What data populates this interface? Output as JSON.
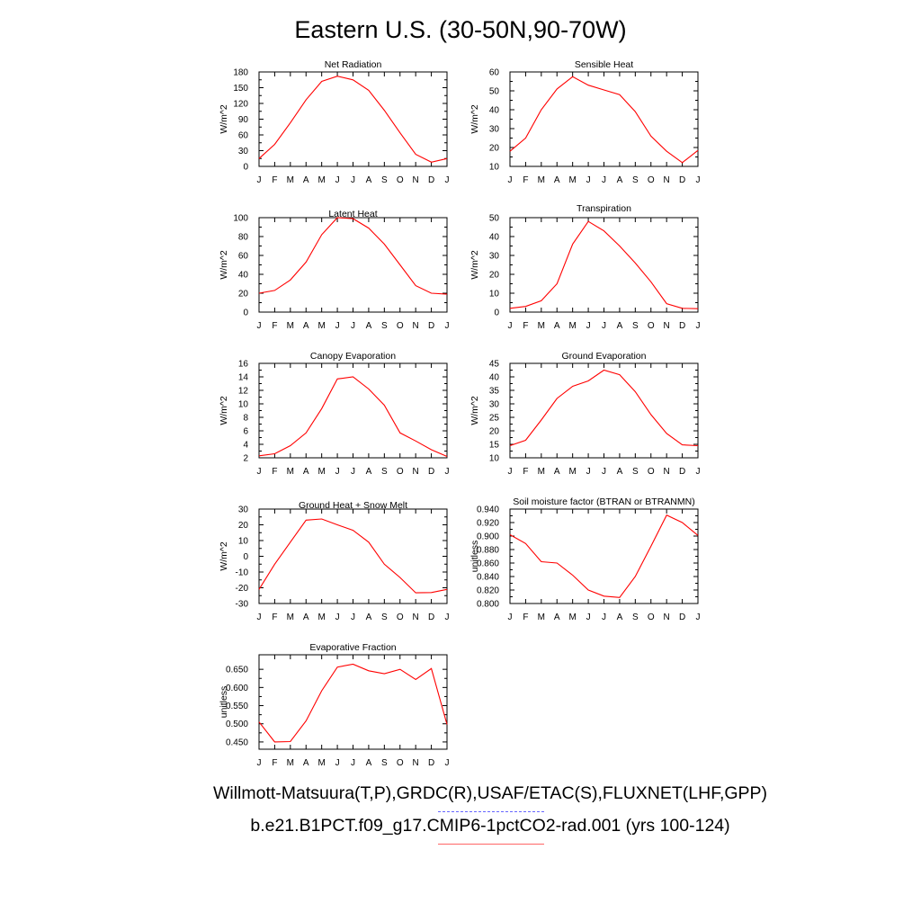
{
  "title": "Eastern U.S. (30-50N,90-70W)",
  "footer": {
    "observations": "Willmott-Matsuura(T,P),GRDC(R),USAF/ETAC(S),FLUXNET(LHF,GPP)",
    "model": "b.e21.B1PCT.f09_g17.CMIP6-1pctCO2-rad.001 (yrs 100-124)"
  },
  "colors": {
    "model_line": "#ff0000",
    "obs_legend": "#6666ff",
    "model_legend": "#ff6666"
  },
  "chart_data": [
    {
      "type": "line",
      "title": "Net Radiation",
      "ylabel": "W/m^2",
      "x": [
        "J",
        "F",
        "M",
        "A",
        "M",
        "J",
        "J",
        "A",
        "S",
        "O",
        "N",
        "D",
        "J"
      ],
      "ylim": [
        0,
        180
      ],
      "yticks": [
        "0",
        "30",
        "60",
        "90",
        "120",
        "150",
        "180"
      ],
      "series": [
        {
          "values": [
            15,
            42,
            83,
            127,
            162,
            172,
            165,
            145,
            107,
            64,
            23,
            8,
            15
          ]
        }
      ]
    },
    {
      "type": "line",
      "title": "Sensible Heat",
      "ylabel": "W/m^2",
      "x": [
        "J",
        "F",
        "M",
        "A",
        "M",
        "J",
        "J",
        "A",
        "S",
        "O",
        "N",
        "D",
        "J"
      ],
      "ylim": [
        10,
        60
      ],
      "yticks": [
        "10",
        "20",
        "30",
        "40",
        "50",
        "60"
      ],
      "series": [
        {
          "values": [
            18,
            25,
            40,
            51,
            57.5,
            53,
            50.5,
            48,
            39,
            26,
            18,
            12,
            18.5
          ]
        }
      ]
    },
    {
      "type": "line",
      "title": "Latent Heat",
      "ylabel": "W/m^2",
      "x": [
        "J",
        "F",
        "M",
        "A",
        "M",
        "J",
        "J",
        "A",
        "S",
        "O",
        "N",
        "D",
        "J"
      ],
      "ylim": [
        0,
        100
      ],
      "yticks": [
        "0",
        "20",
        "40",
        "60",
        "80",
        "100"
      ],
      "series": [
        {
          "values": [
            20,
            23,
            34,
            53,
            82,
            100,
            99,
            89,
            72,
            50,
            28,
            20,
            19
          ]
        }
      ]
    },
    {
      "type": "line",
      "title": "Transpiration",
      "ylabel": "W/m^2",
      "x": [
        "J",
        "F",
        "M",
        "A",
        "M",
        "J",
        "J",
        "A",
        "S",
        "O",
        "N",
        "D",
        "J"
      ],
      "ylim": [
        0,
        50
      ],
      "yticks": [
        "0",
        "10",
        "20",
        "30",
        "40",
        "50"
      ],
      "series": [
        {
          "values": [
            2,
            3,
            6,
            15,
            36,
            48,
            43,
            35,
            26,
            16,
            4.5,
            2,
            1.8
          ]
        }
      ]
    },
    {
      "type": "line",
      "title": "Canopy Evaporation",
      "ylabel": "W/m^2",
      "x": [
        "J",
        "F",
        "M",
        "A",
        "M",
        "J",
        "J",
        "A",
        "S",
        "O",
        "N",
        "D",
        "J"
      ],
      "ylim": [
        2,
        16
      ],
      "yticks": [
        "2",
        "4",
        "6",
        "8",
        "10",
        "12",
        "14",
        "16"
      ],
      "series": [
        {
          "values": [
            2.3,
            2.6,
            3.8,
            5.7,
            9.3,
            13.7,
            14.0,
            12.2,
            9.8,
            5.7,
            4.5,
            3.2,
            2.2
          ]
        }
      ]
    },
    {
      "type": "line",
      "title": "Ground Evaporation",
      "ylabel": "W/m^2",
      "x": [
        "J",
        "F",
        "M",
        "A",
        "M",
        "J",
        "J",
        "A",
        "S",
        "O",
        "N",
        "D",
        "J"
      ],
      "ylim": [
        10,
        45
      ],
      "yticks": [
        "10",
        "15",
        "20",
        "25",
        "30",
        "35",
        "40",
        "45"
      ],
      "series": [
        {
          "values": [
            14.5,
            16.5,
            24,
            32,
            36.5,
            38.5,
            42.5,
            40.8,
            34.5,
            26,
            19,
            14.8,
            14.5
          ]
        }
      ]
    },
    {
      "type": "line",
      "title": "Ground Heat + Snow Melt",
      "ylabel": "W/m^2",
      "x": [
        "J",
        "F",
        "M",
        "A",
        "M",
        "J",
        "J",
        "A",
        "S",
        "O",
        "N",
        "D",
        "J"
      ],
      "ylim": [
        -30,
        30
      ],
      "yticks": [
        "-30",
        "-20",
        "-10",
        "0",
        "10",
        "20",
        "30"
      ],
      "series": [
        {
          "values": [
            -21,
            -5,
            9,
            23,
            23.7,
            20,
            16.5,
            9,
            -5,
            -13.5,
            -23.2,
            -23,
            -21
          ]
        }
      ]
    },
    {
      "type": "line",
      "title": "Soil moisture factor (BTRAN or BTRANMN)",
      "ylabel": "unitless",
      "x": [
        "J",
        "F",
        "M",
        "A",
        "M",
        "J",
        "J",
        "A",
        "S",
        "O",
        "N",
        "D",
        "J"
      ],
      "ylim": [
        0.8,
        0.94
      ],
      "yticks": [
        "0.800",
        "0.820",
        "0.840",
        "0.860",
        "0.880",
        "0.900",
        "0.920",
        "0.940"
      ],
      "series": [
        {
          "values": [
            0.902,
            0.889,
            0.862,
            0.86,
            0.842,
            0.82,
            0.811,
            0.809,
            0.84,
            0.885,
            0.931,
            0.92,
            0.901
          ]
        }
      ]
    },
    {
      "type": "line",
      "title": "Evaporative Fraction",
      "ylabel": "unitless",
      "x": [
        "J",
        "F",
        "M",
        "A",
        "M",
        "J",
        "J",
        "A",
        "S",
        "O",
        "N",
        "D",
        "J"
      ],
      "ylim": [
        0.43,
        0.69
      ],
      "yticks": [
        "0.450",
        "0.500",
        "0.550",
        "0.600",
        "0.650"
      ],
      "series": [
        {
          "values": [
            0.505,
            0.45,
            0.451,
            0.508,
            0.591,
            0.656,
            0.664,
            0.646,
            0.638,
            0.65,
            0.622,
            0.652,
            0.498
          ]
        }
      ]
    }
  ]
}
